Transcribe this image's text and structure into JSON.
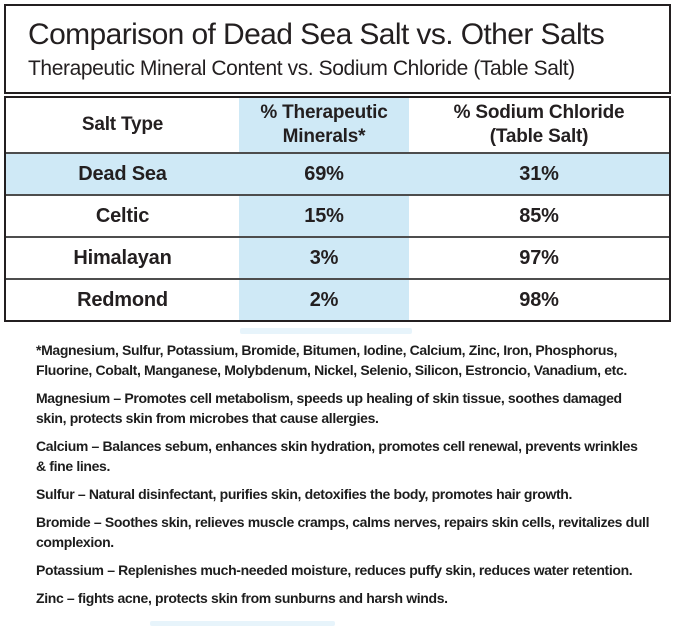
{
  "header": {
    "title": "Comparison of Dead Sea Salt vs. Other Salts",
    "subtitle": "Therapeutic Mineral Content vs. Sodium Chloride (Table Salt)"
  },
  "table": {
    "highlight_color": "#cfe9f6",
    "columns": [
      {
        "label": "Salt Type"
      },
      {
        "label": "% Therapeutic\nMinerals*",
        "highlighted": true
      },
      {
        "label": "% Sodium Chloride\n(Table Salt)"
      }
    ],
    "rows": [
      {
        "salt": "Dead Sea",
        "therapeutic": "69%",
        "sodium": "31%",
        "highlighted": true
      },
      {
        "salt": "Celtic",
        "therapeutic": "15%",
        "sodium": "85%",
        "highlighted": false
      },
      {
        "salt": "Himalayan",
        "therapeutic": "3%",
        "sodium": "97%",
        "highlighted": false
      },
      {
        "salt": "Redmond",
        "therapeutic": "2%",
        "sodium": "98%",
        "highlighted": false
      }
    ]
  },
  "footnotes": {
    "paragraphs": [
      "*Magnesium, Sulfur, Potassium, Bromide, Bitumen, Iodine, Calcium, Zinc, Iron, Phosphorus, Fluorine, Cobalt, Manganese, Molybdenum, Nickel, Selenio, Silicon, Estroncio, Vanadium, etc.",
      "Magnesium – Promotes cell metabolism, speeds up healing of skin tissue, soothes damaged skin, protects skin from microbes that cause allergies.",
      "Calcium – Balances sebum, enhances skin hydration, promotes cell renewal, prevents wrinkles & fine lines.",
      "Sulfur – Natural disinfectant, purifies skin, detoxifies the body, promotes hair growth.",
      "Bromide – Soothes skin, relieves muscle cramps, calms nerves, repairs skin cells, revitalizes dull complexion.",
      "Potassium – Replenishes much-needed moisture, reduces puffy skin, reduces water retention.",
      "Zinc – fights acne, protects skin from sunburns and harsh winds."
    ]
  }
}
